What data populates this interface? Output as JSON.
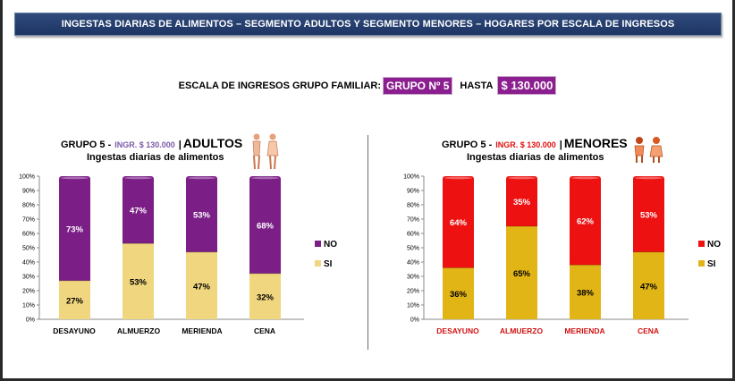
{
  "banner": {
    "title": "INGESTAS DIARIAS DE ALIMENTOS – SEGMENTO ADULTOS Y SEGMENTO MENORES – HOGARES  POR ESCALA DE INGRESOS"
  },
  "scale": {
    "label": "ESCALA DE INGRESOS GRUPO FAMILIAR:",
    "group": "GRUPO Nº 5",
    "hasta": "HASTA",
    "amount": "$ 130.000"
  },
  "colors": {
    "adultos_no": "#7b1f86",
    "adultos_si": "#f0d67e",
    "menores_no": "#ee1111",
    "menores_si": "#e2b517",
    "adultos_ingr": "#7b5aa6",
    "menores_ingr": "#e01010",
    "menores_cat": "#d11010"
  },
  "chart_data": [
    {
      "type": "bar",
      "stacked": true,
      "title_group": "GRUPO 5 -",
      "title_ingr": "INGR. $ 130.000",
      "title_sep": "|",
      "title_segment": "ADULTOS",
      "subtitle": "Ingestas diarias de alimentos",
      "categories": [
        "DESAYUNO",
        "ALMUERZO",
        "MERIENDA",
        "CENA"
      ],
      "series": [
        {
          "name": "SI",
          "values": [
            27,
            53,
            47,
            32
          ],
          "labels": [
            "27%",
            "53%",
            "47%",
            "32%"
          ]
        },
        {
          "name": "NO",
          "values": [
            73,
            47,
            53,
            68
          ],
          "labels": [
            "73%",
            "47%",
            "53%",
            "68%"
          ]
        }
      ],
      "yticks": [
        "0%",
        "10%",
        "20%",
        "30%",
        "40%",
        "50%",
        "60%",
        "70%",
        "80%",
        "90%",
        "100%"
      ],
      "ylim": [
        0,
        100
      ],
      "legend": [
        {
          "name": "NO"
        },
        {
          "name": "SI"
        }
      ],
      "legend_position": "right"
    },
    {
      "type": "bar",
      "stacked": true,
      "title_group": "GRUPO 5 -",
      "title_ingr": "INGR. $ 130.000",
      "title_sep": "|",
      "title_segment": "MENORES",
      "subtitle": "Ingestas diarias de alimentos",
      "categories": [
        "DESAYUNO",
        "ALMUERZO",
        "MERIENDA",
        "CENA"
      ],
      "series": [
        {
          "name": "SI",
          "values": [
            36,
            65,
            38,
            47
          ],
          "labels": [
            "36%",
            "65%",
            "38%",
            "47%"
          ]
        },
        {
          "name": "NO",
          "values": [
            64,
            35,
            62,
            53
          ],
          "labels": [
            "64%",
            "35%",
            "62%",
            "53%"
          ]
        }
      ],
      "yticks": [
        "0%",
        "10%",
        "20%",
        "30%",
        "40%",
        "50%",
        "60%",
        "70%",
        "80%",
        "90%",
        "100%"
      ],
      "ylim": [
        0,
        100
      ],
      "legend": [
        {
          "name": "NO"
        },
        {
          "name": "SI"
        }
      ],
      "legend_position": "right"
    }
  ]
}
